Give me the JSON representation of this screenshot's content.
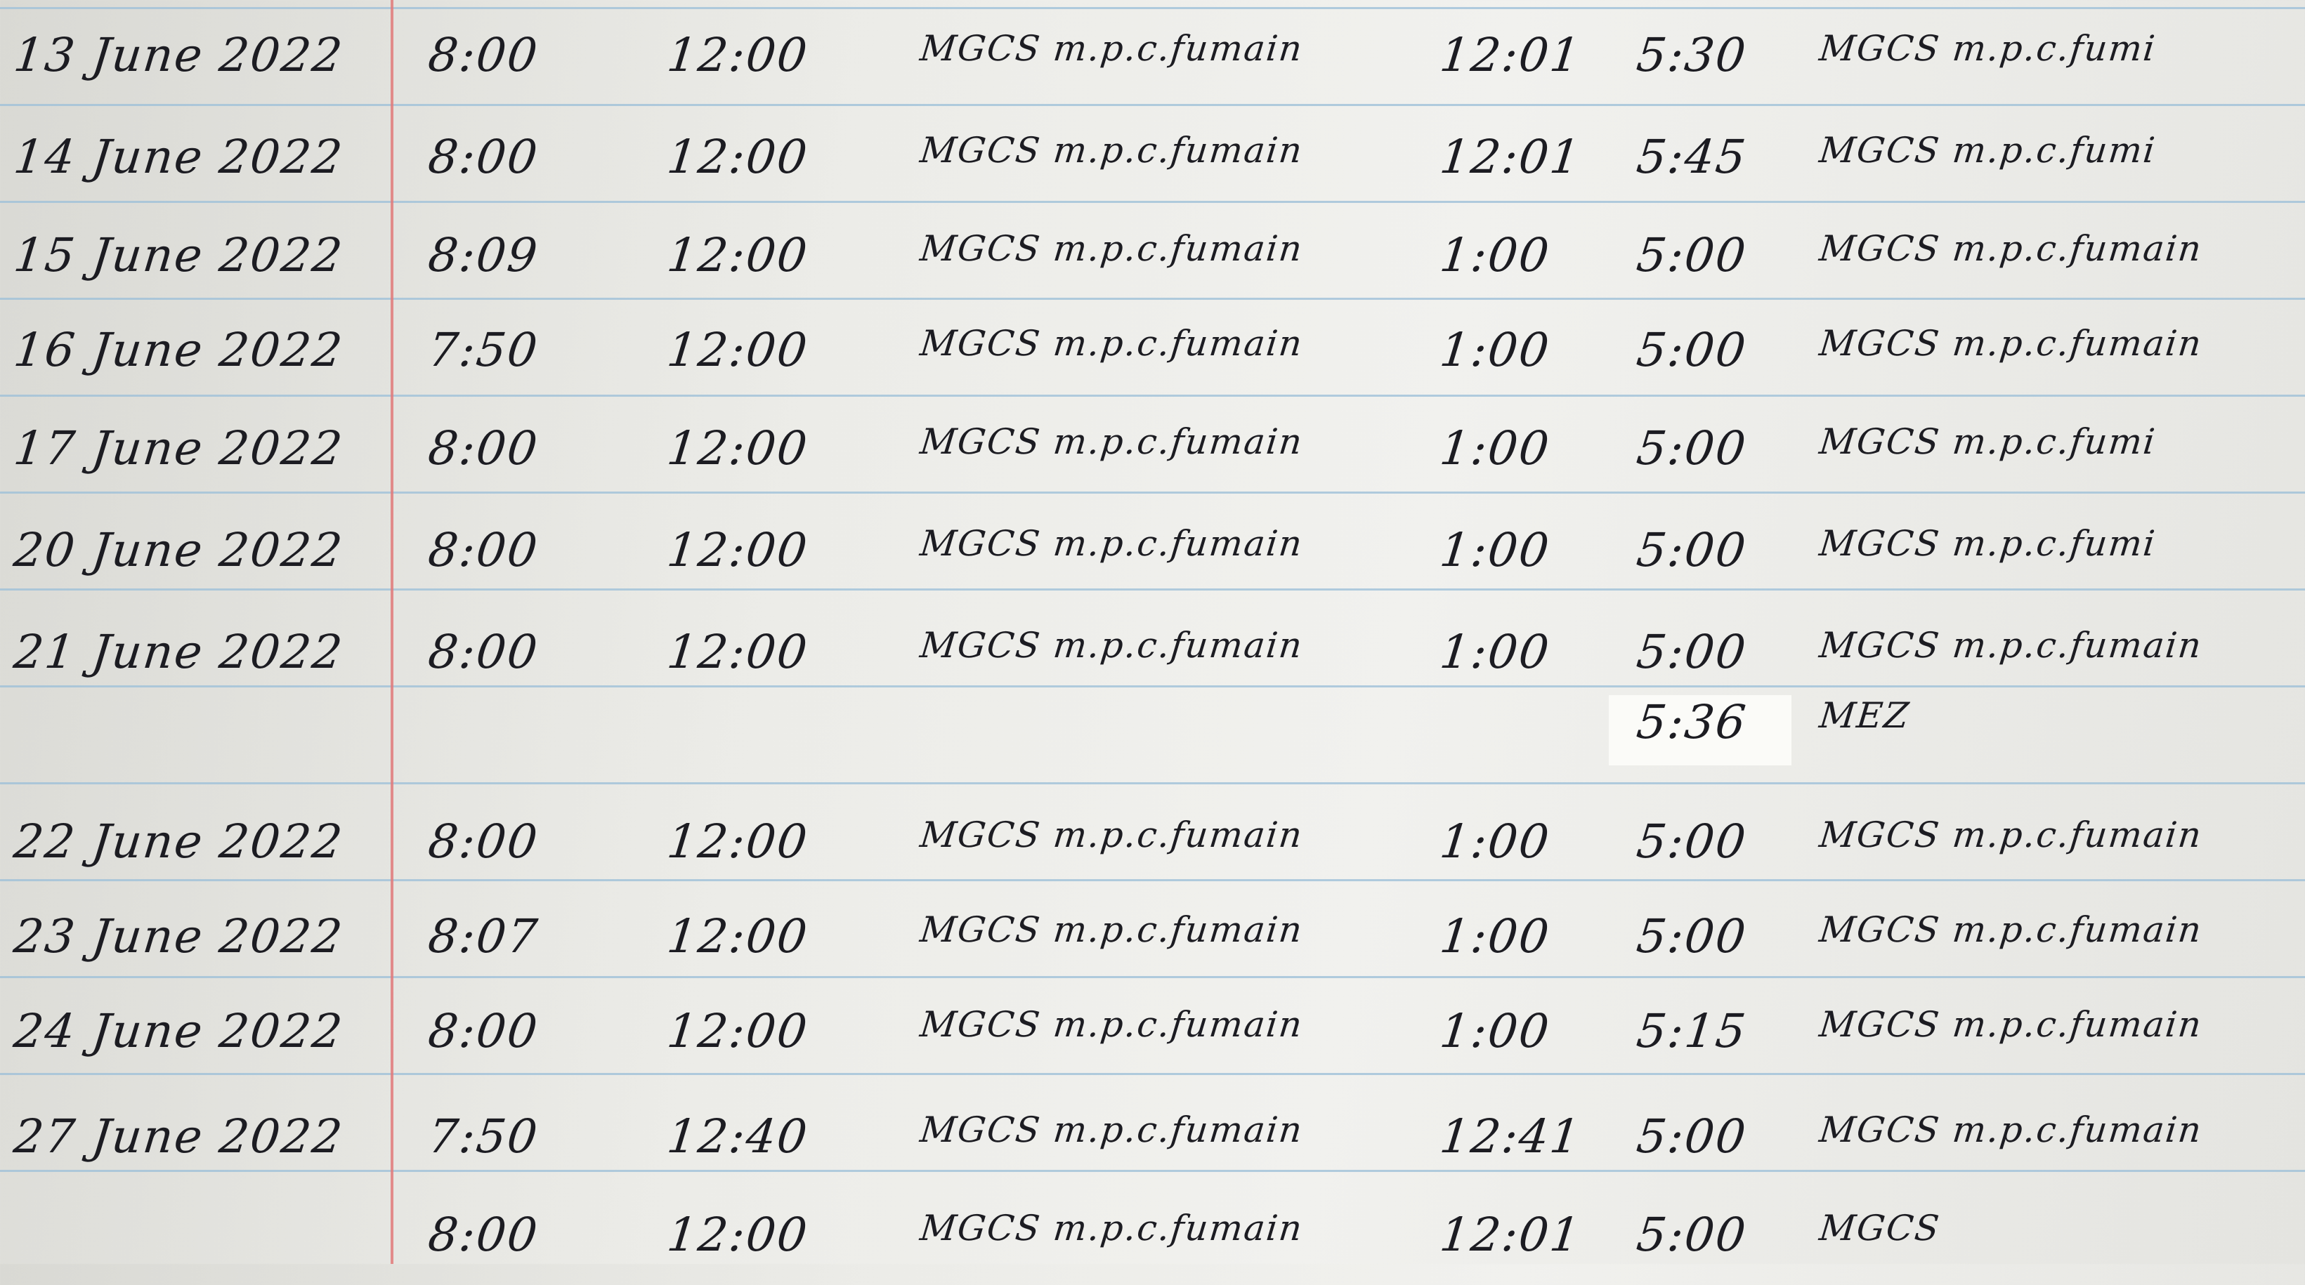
{
  "log": {
    "rows": [
      {
        "date": "13 June 2022",
        "time_in": "8:00",
        "time_out_lunch": "12:00",
        "sign_1": "MGCS m.p.c.fumain",
        "time_in_lunch": "12:01",
        "time_out": "5:30",
        "sign_2": "MGCS m.p.c.fumi"
      },
      {
        "date": "14 June 2022",
        "time_in": "8:00",
        "time_out_lunch": "12:00",
        "sign_1": "MGCS m.p.c.fumain",
        "time_in_lunch": "12:01",
        "time_out": "5:45",
        "sign_2": "MGCS m.p.c.fumi"
      },
      {
        "date": "15 June 2022",
        "time_in": "8:09",
        "time_out_lunch": "12:00",
        "sign_1": "MGCS m.p.c.fumain",
        "time_in_lunch": "1:00",
        "time_out": "5:00",
        "sign_2": "MGCS m.p.c.fumain"
      },
      {
        "date": "16 June 2022",
        "time_in": "7:50",
        "time_out_lunch": "12:00",
        "sign_1": "MGCS m.p.c.fumain",
        "time_in_lunch": "1:00",
        "time_out": "5:00",
        "sign_2": "MGCS m.p.c.fumain"
      },
      {
        "date": "17 June 2022",
        "time_in": "8:00",
        "time_out_lunch": "12:00",
        "sign_1": "MGCS m.p.c.fumain",
        "time_in_lunch": "1:00",
        "time_out": "5:00",
        "sign_2": "MGCS m.p.c.fumi"
      },
      {
        "date": "20 June 2022",
        "time_in": "8:00",
        "time_out_lunch": "12:00",
        "sign_1": "MGCS m.p.c.fumain",
        "time_in_lunch": "1:00",
        "time_out": "5:00",
        "sign_2": "MGCS m.p.c.fumi"
      },
      {
        "date": "21 June 2022",
        "time_in": "8:00",
        "time_out_lunch": "12:00",
        "sign_1": "MGCS m.p.c.fumain",
        "time_in_lunch": "1:00",
        "time_out": "5:00",
        "sign_2": "MGCS m.p.c.fumain"
      },
      {
        "date": "",
        "time_in": "",
        "time_out_lunch": "",
        "sign_1": "",
        "time_in_lunch": "",
        "time_out": "5:36",
        "sign_2": "MEZ"
      },
      {
        "date": "22 June 2022",
        "time_in": "8:00",
        "time_out_lunch": "12:00",
        "sign_1": "MGCS m.p.c.fumain",
        "time_in_lunch": "1:00",
        "time_out": "5:00",
        "sign_2": "MGCS m.p.c.fumain"
      },
      {
        "date": "23 June 2022",
        "time_in": "8:07",
        "time_out_lunch": "12:00",
        "sign_1": "MGCS m.p.c.fumain",
        "time_in_lunch": "1:00",
        "time_out": "5:00",
        "sign_2": "MGCS m.p.c.fumain"
      },
      {
        "date": "24 June 2022",
        "time_in": "8:00",
        "time_out_lunch": "12:00",
        "sign_1": "MGCS m.p.c.fumain",
        "time_in_lunch": "1:00",
        "time_out": "5:15",
        "sign_2": "MGCS m.p.c.fumain"
      },
      {
        "date": "27 June 2022",
        "time_in": "7:50",
        "time_out_lunch": "12:40",
        "sign_1": "MGCS m.p.c.fumain",
        "time_in_lunch": "12:41",
        "time_out": "5:00",
        "sign_2": "MGCS m.p.c.fumain"
      },
      {
        "date": "",
        "time_in": "8:00",
        "time_out_lunch": "12:00",
        "sign_1": "MGCS m.p.c.fumain",
        "time_in_lunch": "12:01",
        "time_out": "5:00",
        "sign_2": "MGCS"
      }
    ]
  }
}
